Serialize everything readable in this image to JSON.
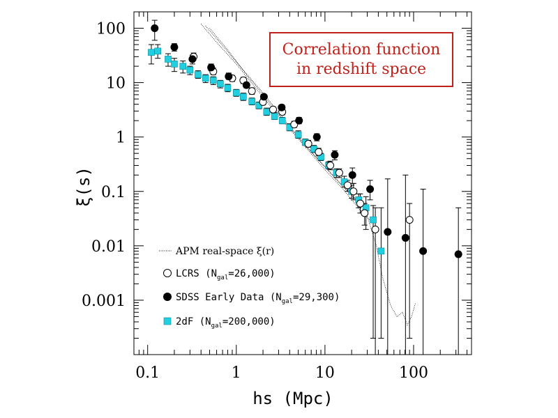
{
  "chart_data": {
    "type": "scatter",
    "title": "Correlation function in redshift space",
    "title_lines": [
      "Correlation function",
      "in redshift space"
    ],
    "xlabel": "hs (Mpc)",
    "ylabel": "ξ(s)",
    "x_scale": "log",
    "y_scale": "log",
    "xlim": [
      0.07,
      450
    ],
    "ylim": [
      0.0001,
      200
    ],
    "x_ticks": [
      {
        "value": 0.1,
        "label": "0.1"
      },
      {
        "value": 1,
        "label": "1"
      },
      {
        "value": 10,
        "label": "10"
      },
      {
        "value": 100,
        "label": "100"
      }
    ],
    "y_ticks": [
      {
        "value": 100,
        "label": "100"
      },
      {
        "value": 10,
        "label": "10"
      },
      {
        "value": 1,
        "label": "1"
      },
      {
        "value": 0.1,
        "label": "0.1"
      },
      {
        "value": 0.01,
        "label": "0.01"
      },
      {
        "value": 0.001,
        "label": "0.001"
      }
    ],
    "grid": false,
    "legend_position": "bottom-left",
    "legend": {
      "apm": "APM real-space ξ(r)",
      "lcrs": {
        "name": "LCRS (N",
        "sub": "gal",
        "rest": "=26,000)"
      },
      "sdss": {
        "name": "SDSS Early Data (N",
        "sub": "gal",
        "rest": "=29,300)"
      },
      "twodf": {
        "name": "2dF (N",
        "sub": "gal",
        "rest": "=200,000)"
      }
    },
    "colors": {
      "twodf": "#22cfe0",
      "sdss": "#000000",
      "lcrs": "#000000",
      "callout": "#c0201a"
    },
    "series": [
      {
        "name": "2dF (Ngal=200,000)",
        "marker": "square",
        "x": [
          0.11,
          0.13,
          0.17,
          0.2,
          0.25,
          0.3,
          0.37,
          0.45,
          0.55,
          0.66,
          0.8,
          1.0,
          1.2,
          1.5,
          1.8,
          2.2,
          2.7,
          3.3,
          4.0,
          5.0,
          6.0,
          7.5,
          9.0,
          11,
          13.5,
          16.5,
          20,
          24,
          29,
          35,
          43
        ],
        "y": [
          36,
          38,
          27,
          22,
          20,
          17,
          14,
          12,
          11,
          9.5,
          8,
          6.5,
          5.5,
          4.5,
          3.8,
          2.9,
          2.4,
          2.0,
          1.5,
          1.1,
          0.8,
          0.6,
          0.43,
          0.3,
          0.22,
          0.15,
          0.1,
          0.07,
          0.05,
          0.03,
          0.008
        ],
        "y_lo": [
          22,
          28,
          20,
          16,
          15,
          14,
          12,
          10,
          9.2,
          8,
          6.8,
          5.6,
          4.7,
          3.9,
          3.3,
          2.5,
          2.1,
          1.75,
          1.3,
          0.95,
          0.7,
          0.52,
          0.37,
          0.26,
          0.18,
          0.12,
          0.075,
          0.05,
          0.02,
          0.0002,
          0.0002
        ],
        "y_hi": [
          50,
          50,
          34,
          28,
          25,
          20,
          16.5,
          14,
          12.8,
          11,
          9.3,
          7.5,
          6.4,
          5.2,
          4.4,
          3.4,
          2.8,
          2.3,
          1.75,
          1.3,
          0.92,
          0.7,
          0.5,
          0.35,
          0.26,
          0.19,
          0.13,
          0.09,
          0.08,
          0.055,
          0.05
        ]
      },
      {
        "name": "SDSS Early Data (Ngal=29,300)",
        "marker": "filled-circle",
        "x": [
          0.12,
          0.2,
          0.32,
          0.52,
          0.82,
          1.3,
          2.05,
          3.25,
          5.1,
          8.1,
          12.9,
          20.4,
          32.3,
          51,
          81,
          128,
          320
        ],
        "y": [
          100,
          45,
          27,
          19,
          13,
          9,
          5.5,
          3.5,
          2.0,
          1.0,
          0.47,
          0.2,
          0.11,
          0.018,
          0.014,
          0.008,
          0.007
        ],
        "y_lo": [
          60,
          38,
          22,
          16.5,
          11.5,
          8,
          5,
          3.1,
          1.75,
          0.85,
          0.38,
          0.14,
          0.07,
          0.0001,
          0.0001,
          0.0001,
          0.0001
        ],
        "y_hi": [
          140,
          52,
          32,
          22,
          15,
          10,
          6,
          3.9,
          2.3,
          1.15,
          0.56,
          0.27,
          0.16,
          0.17,
          0.2,
          0.11,
          0.05
        ]
      },
      {
        "name": "LCRS (Ngal=26,000)",
        "marker": "open-circle",
        "x": [
          0.33,
          0.55,
          0.9,
          1.2,
          1.5,
          2.0,
          2.6,
          3.3,
          4.5,
          6.5,
          8.5,
          11.5,
          14.5,
          18.0,
          21.0,
          25.0,
          28.0,
          37.0,
          90
        ],
        "y": [
          30,
          16,
          12,
          11,
          7,
          4.4,
          3.2,
          2.9,
          1.7,
          0.75,
          0.53,
          0.3,
          0.22,
          0.13,
          0.1,
          0.06,
          0.04,
          0.02,
          0.03
        ],
        "y_lo": [
          26,
          14,
          10.5,
          9.6,
          6.1,
          3.9,
          2.8,
          2.55,
          1.5,
          0.65,
          0.45,
          0.25,
          0.18,
          0.1,
          0.07,
          0.04,
          0.024,
          0.0001,
          0.0002
        ],
        "y_hi": [
          35,
          18.5,
          13.5,
          12.5,
          8,
          5,
          3.6,
          3.3,
          1.95,
          0.87,
          0.62,
          0.36,
          0.26,
          0.16,
          0.14,
          0.09,
          0.06,
          0.05,
          0.06
        ]
      }
    ],
    "apm_curves": [
      {
        "x": [
          0.4,
          0.6,
          1,
          1.6,
          2.5,
          4,
          6.3,
          10,
          16,
          25,
          32
        ],
        "y": [
          120,
          55,
          22,
          8.5,
          3.5,
          1.4,
          0.6,
          0.25,
          0.11,
          0.045,
          0.03
        ]
      },
      {
        "x": [
          0.45,
          0.7,
          1.2,
          2,
          3.2,
          5,
          8,
          13,
          20,
          28
        ],
        "y": [
          110,
          48,
          17,
          6.5,
          2.5,
          1.0,
          0.42,
          0.18,
          0.085,
          0.05
        ]
      },
      {
        "x": [
          0.5,
          0.8,
          1.3,
          2.2,
          3.6,
          6,
          10,
          16,
          25
        ],
        "y": [
          100,
          40,
          14,
          5,
          1.8,
          0.7,
          0.28,
          0.12,
          0.06
        ]
      },
      {
        "x": [
          30,
          38,
          45,
          55,
          65,
          75,
          85,
          95,
          105
        ],
        "y": [
          0.035,
          0.01,
          0.0025,
          0.0008,
          0.0005,
          0.0006,
          0.00035,
          0.0005,
          0.0009
        ]
      }
    ]
  }
}
